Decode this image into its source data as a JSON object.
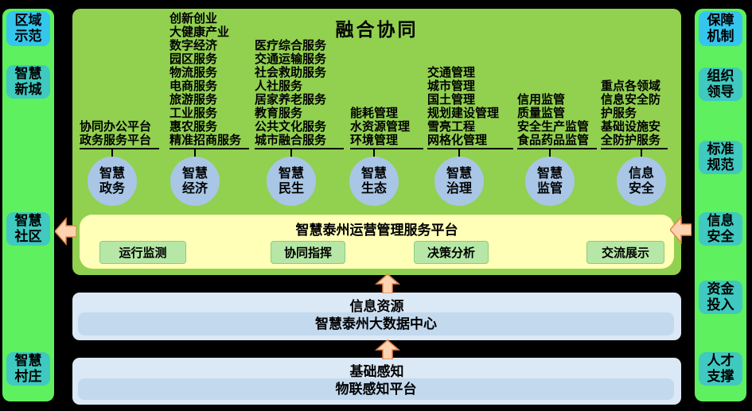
{
  "left_sidebar": {
    "header": "区域示范",
    "items": [
      "智慧新城",
      "智慧社区",
      "智慧村庄"
    ]
  },
  "right_sidebar": {
    "header": "保障机制",
    "items": [
      "组织领导",
      "标准规范",
      "信息安全",
      "资金投入",
      "人才支撑"
    ]
  },
  "main": {
    "title": "融合协同",
    "columns": [
      {
        "circle": "智慧政务",
        "services": [
          "协同办公平台",
          "政务服务平台"
        ]
      },
      {
        "circle": "智慧经济",
        "services": [
          "创新创业",
          "大健康产业",
          "数字经济",
          "园区服务",
          "物流服务",
          "电商服务",
          "旅游服务",
          "工业服务",
          "惠农服务",
          "精准招商服务"
        ]
      },
      {
        "circle": "智慧民生",
        "services": [
          "医疗综合服务",
          "交通运输服务",
          "社会救助服务",
          "人社服务",
          "居家养老服务",
          "教育服务",
          "公共文化服务",
          "城市融合服务"
        ]
      },
      {
        "circle": "智慧生态",
        "services": [
          "能耗管理",
          "水资源管理",
          "环境管理"
        ]
      },
      {
        "circle": "智慧治理",
        "services": [
          "交通管理",
          "城市管理",
          "国土管理",
          "规划建设管理",
          "雪亮工程",
          "网格化管理"
        ]
      },
      {
        "circle": "智慧监管",
        "services": [
          "信用监管",
          "质量监管",
          "安全生产监管",
          "食品药品监管"
        ]
      },
      {
        "circle": "信息安全",
        "services": [
          "重点各领域信息安全防护服务",
          "基础设施安全防护服务"
        ]
      }
    ],
    "platform": {
      "title": "智慧泰州运营管理服务平台",
      "buttons": [
        "运行监测",
        "协同指挥",
        "决策分析",
        "交流展示"
      ]
    }
  },
  "layers": [
    {
      "title": "信息资源",
      "content": "智慧泰州大数据中心"
    },
    {
      "title": "基础感知",
      "content": "物联感知平台"
    }
  ],
  "colors": {
    "background": "#000000",
    "sidebar_green": "#5ef05e",
    "header_blue": "#35c6ee",
    "item_teal": "#3fc9c0",
    "main_green": "#92d050",
    "circle_blue": "#a9c6e6",
    "platform_yellow": "#ffffb8",
    "button_green": "#b6e7a6",
    "layer_outer_blue": "#dbe8f5",
    "layer_inner_blue": "#c3d9ee",
    "arrow_fill": "#fcd3b1",
    "arrow_stroke": "#e6864a"
  }
}
